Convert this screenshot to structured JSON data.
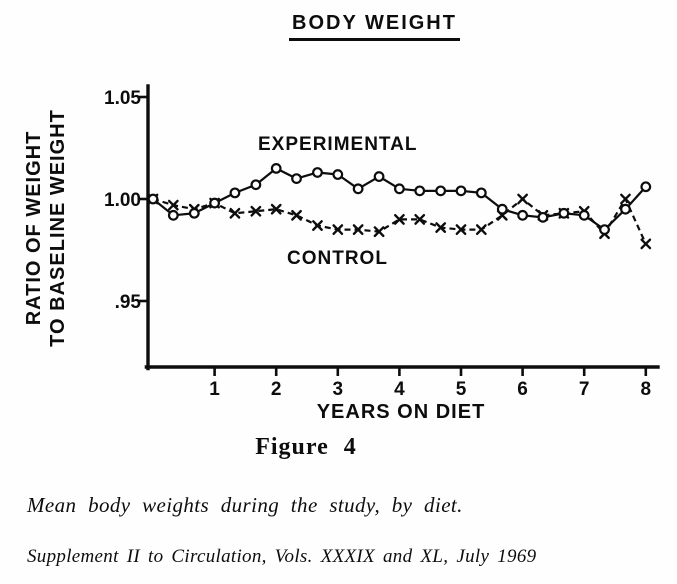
{
  "figure": {
    "title": "BODY WEIGHT",
    "figure_label": "Figure 4",
    "caption": "Mean body weights during the study, by diet.",
    "source": "Supplement II to Circulation, Vols. XXXIX and XL, July 1969"
  },
  "chart_data": {
    "type": "line",
    "title": "BODY WEIGHT",
    "xlabel": "YEARS ON DIET",
    "ylabel": "RATIO OF WEIGHT TO BASELINE WEIGHT",
    "ylabel_lines": [
      "RATIO OF WEIGHT",
      "TO BASELINE WEIGHT"
    ],
    "xlim": [
      0,
      8.2
    ],
    "ylim": [
      0.935,
      1.057
    ],
    "grid": false,
    "legend_position": "inline-annotations",
    "x_ticks": [
      {
        "value": 1,
        "label": "1"
      },
      {
        "value": 2,
        "label": "2"
      },
      {
        "value": 3,
        "label": "3"
      },
      {
        "value": 4,
        "label": "4"
      },
      {
        "value": 5,
        "label": "5"
      },
      {
        "value": 6,
        "label": "6"
      },
      {
        "value": 7,
        "label": "7"
      },
      {
        "value": 8,
        "label": "8"
      }
    ],
    "y_ticks": [
      {
        "value": 1.05,
        "label": "1.05"
      },
      {
        "value": 1.0,
        "label": "1.00"
      },
      {
        "value": 0.95,
        "label": ".95"
      }
    ],
    "x": [
      0,
      0.33,
      0.67,
      1,
      1.33,
      1.67,
      2,
      2.33,
      2.67,
      3,
      3.33,
      3.67,
      4,
      4.33,
      4.67,
      5,
      5.33,
      5.67,
      6,
      6.33,
      6.67,
      7,
      7.33,
      7.67,
      8
    ],
    "series": [
      {
        "name": "EXPERIMENTAL",
        "marker": "circle",
        "line": "solid",
        "values": [
          1.0,
          0.992,
          0.993,
          0.998,
          1.003,
          1.007,
          1.015,
          1.01,
          1.013,
          1.012,
          1.005,
          1.011,
          1.005,
          1.004,
          1.004,
          1.004,
          1.003,
          0.995,
          0.992,
          0.991,
          0.993,
          0.992,
          0.985,
          0.995,
          1.006
        ]
      },
      {
        "name": "CONTROL",
        "marker": "x",
        "line": "dashed",
        "values": [
          1.0,
          0.997,
          0.995,
          0.998,
          0.993,
          0.994,
          0.995,
          0.992,
          0.987,
          0.985,
          0.985,
          0.984,
          0.99,
          0.99,
          0.986,
          0.985,
          0.985,
          0.992,
          1.0,
          0.992,
          0.993,
          0.994,
          0.983,
          1.0,
          0.978
        ]
      }
    ],
    "colors": {
      "ink": "#0d0d0d",
      "paper": "#fefefe"
    }
  }
}
